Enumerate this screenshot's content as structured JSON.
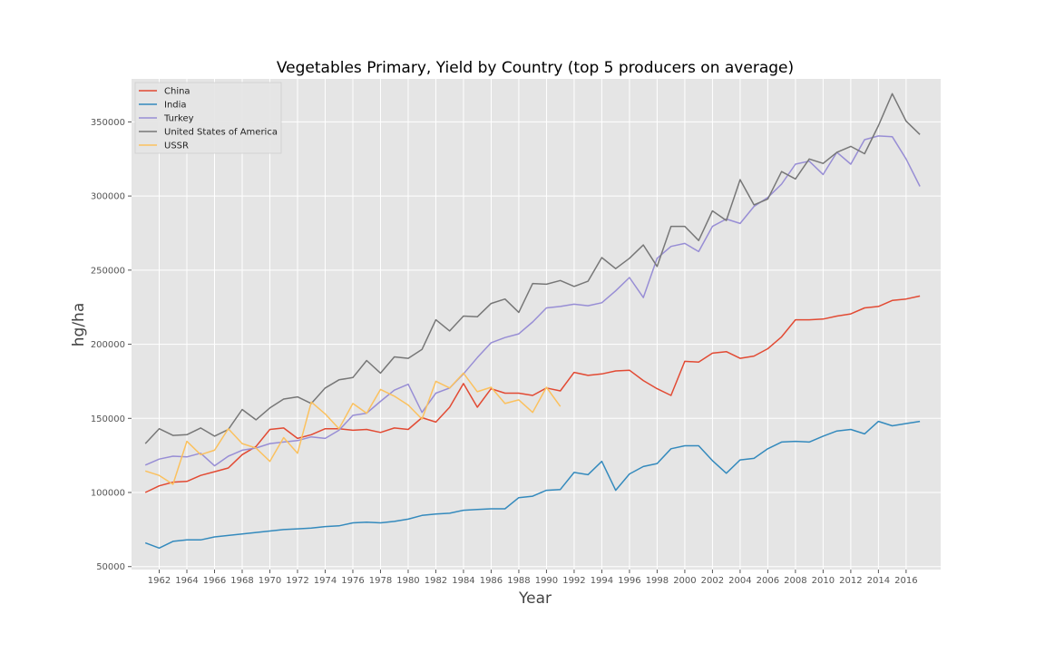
{
  "chart_data": {
    "type": "line",
    "title": "Vegetables Primary, Yield by Country (top 5 producers on average)",
    "xlabel": "Year",
    "ylabel": "hg/ha",
    "xlim": [
      1960,
      2018.5
    ],
    "ylim": [
      48000,
      379000
    ],
    "x_ticks": [
      1962,
      1964,
      1966,
      1968,
      1970,
      1972,
      1974,
      1976,
      1978,
      1980,
      1982,
      1984,
      1986,
      1988,
      1990,
      1992,
      1994,
      1996,
      1998,
      2000,
      2002,
      2004,
      2006,
      2008,
      2010,
      2012,
      2014,
      2016
    ],
    "y_ticks": [
      50000,
      100000,
      150000,
      200000,
      250000,
      300000,
      350000
    ],
    "grid": true,
    "legend_position": "top-left",
    "series": [
      {
        "name": "China",
        "color": "#e24a33",
        "x": [
          1961,
          1962,
          1963,
          1964,
          1965,
          1966,
          1967,
          1968,
          1969,
          1970,
          1971,
          1972,
          1973,
          1974,
          1975,
          1976,
          1977,
          1978,
          1979,
          1980,
          1981,
          1982,
          1983,
          1984,
          1985,
          1986,
          1987,
          1988,
          1989,
          1990,
          1991,
          1992,
          1993,
          1994,
          1995,
          1996,
          1997,
          1998,
          1999,
          2000,
          2001,
          2002,
          2003,
          2004,
          2005,
          2006,
          2007,
          2008,
          2009,
          2010,
          2011,
          2012,
          2013,
          2014,
          2015,
          2016,
          2017
        ],
        "values": [
          100000,
          104500,
          107000,
          107500,
          111500,
          114000,
          116500,
          125500,
          131000,
          142500,
          143500,
          136500,
          139000,
          143000,
          143000,
          142000,
          142500,
          140500,
          143500,
          142500,
          150500,
          147500,
          157500,
          173500,
          157500,
          170000,
          167000,
          167000,
          165500,
          170500,
          168500,
          181000,
          179000,
          180000,
          182000,
          182500,
          175500,
          170000,
          165500,
          188500,
          188000,
          194000,
          195000,
          190500,
          192000,
          197000,
          205000,
          216500,
          216500,
          217000,
          219000,
          220500,
          224500,
          225500,
          229500,
          230500,
          232500
        ]
      },
      {
        "name": "India",
        "color": "#348abd",
        "x": [
          1961,
          1962,
          1963,
          1964,
          1965,
          1966,
          1967,
          1968,
          1969,
          1970,
          1971,
          1972,
          1973,
          1974,
          1975,
          1976,
          1977,
          1978,
          1979,
          1980,
          1981,
          1982,
          1983,
          1984,
          1985,
          1986,
          1987,
          1988,
          1989,
          1990,
          1991,
          1992,
          1993,
          1994,
          1995,
          1996,
          1997,
          1998,
          1999,
          2000,
          2001,
          2002,
          2003,
          2004,
          2005,
          2006,
          2007,
          2008,
          2009,
          2010,
          2011,
          2012,
          2013,
          2014,
          2015,
          2016,
          2017
        ],
        "values": [
          66000,
          62500,
          67000,
          68000,
          68000,
          70000,
          71000,
          72000,
          73000,
          74000,
          75000,
          75500,
          76000,
          77000,
          77500,
          79500,
          80000,
          79500,
          80500,
          82000,
          84500,
          85500,
          86000,
          88000,
          88500,
          89000,
          89000,
          96500,
          97500,
          101500,
          102000,
          113500,
          112000,
          121000,
          101500,
          112500,
          117500,
          119500,
          129500,
          131500,
          131500,
          121500,
          113000,
          122000,
          123000,
          129500,
          134000,
          134500,
          134000,
          138000,
          141500,
          142500,
          139500,
          148000,
          145000,
          146500,
          148000
        ]
      },
      {
        "name": "Turkey",
        "color": "#988ed5",
        "x": [
          1961,
          1962,
          1963,
          1964,
          1965,
          1966,
          1967,
          1968,
          1969,
          1970,
          1971,
          1972,
          1973,
          1974,
          1975,
          1976,
          1977,
          1978,
          1979,
          1980,
          1981,
          1982,
          1983,
          1984,
          1985,
          1986,
          1987,
          1988,
          1989,
          1990,
          1991,
          1992,
          1993,
          1994,
          1995,
          1996,
          1997,
          1998,
          1999,
          2000,
          2001,
          2002,
          2003,
          2004,
          2005,
          2006,
          2007,
          2008,
          2009,
          2010,
          2011,
          2012,
          2013,
          2014,
          2015,
          2016,
          2017
        ],
        "values": [
          118500,
          122500,
          124500,
          124000,
          126500,
          118000,
          124500,
          128500,
          130000,
          133000,
          134000,
          135000,
          137500,
          136500,
          142000,
          152000,
          153500,
          161500,
          169000,
          173000,
          154000,
          167000,
          170500,
          180000,
          191000,
          201000,
          204500,
          207000,
          215000,
          224500,
          225500,
          227000,
          226000,
          228000,
          236000,
          245000,
          231500,
          258000,
          266000,
          268000,
          262500,
          279500,
          284500,
          281500,
          293000,
          299000,
          308000,
          321500,
          323500,
          314500,
          329500,
          321500,
          338000,
          340500,
          340000,
          325000,
          306500
        ]
      },
      {
        "name": "United States of America",
        "color": "#777777",
        "x": [
          1961,
          1962,
          1963,
          1964,
          1965,
          1966,
          1967,
          1968,
          1969,
          1970,
          1971,
          1972,
          1973,
          1974,
          1975,
          1976,
          1977,
          1978,
          1979,
          1980,
          1981,
          1982,
          1983,
          1984,
          1985,
          1986,
          1987,
          1988,
          1989,
          1990,
          1991,
          1992,
          1993,
          1994,
          1995,
          1996,
          1997,
          1998,
          1999,
          2000,
          2001,
          2002,
          2003,
          2004,
          2005,
          2006,
          2007,
          2008,
          2009,
          2010,
          2011,
          2012,
          2013,
          2014,
          2015,
          2016,
          2017
        ],
        "values": [
          133000,
          143000,
          138500,
          139000,
          143500,
          138000,
          142500,
          156000,
          149000,
          157000,
          163000,
          164500,
          160000,
          170500,
          176000,
          177500,
          189000,
          180500,
          191500,
          190500,
          196500,
          216500,
          209000,
          219000,
          218500,
          227500,
          230500,
          221500,
          241000,
          240500,
          243000,
          239000,
          242500,
          258500,
          251000,
          258000,
          267000,
          252500,
          279500,
          279500,
          270000,
          290000,
          283500,
          311000,
          294000,
          298000,
          316500,
          311500,
          325000,
          322000,
          329500,
          333500,
          328500,
          347500,
          369000,
          350500,
          341500
        ]
      },
      {
        "name": "USSR",
        "color": "#fbc15e",
        "x": [
          1961,
          1962,
          1963,
          1964,
          1965,
          1966,
          1967,
          1968,
          1969,
          1970,
          1971,
          1972,
          1973,
          1974,
          1975,
          1976,
          1977,
          1978,
          1979,
          1980,
          1981,
          1982,
          1983,
          1984,
          1985,
          1986,
          1987,
          1988,
          1989,
          1990,
          1991
        ],
        "values": [
          114500,
          111500,
          105500,
          134500,
          125500,
          128500,
          143000,
          133000,
          130000,
          121000,
          137000,
          126500,
          161000,
          153000,
          143000,
          160000,
          153500,
          169500,
          165000,
          159000,
          149500,
          175000,
          170500,
          180500,
          168000,
          171000,
          160000,
          162500,
          154000,
          171000,
          158000
        ]
      }
    ]
  }
}
